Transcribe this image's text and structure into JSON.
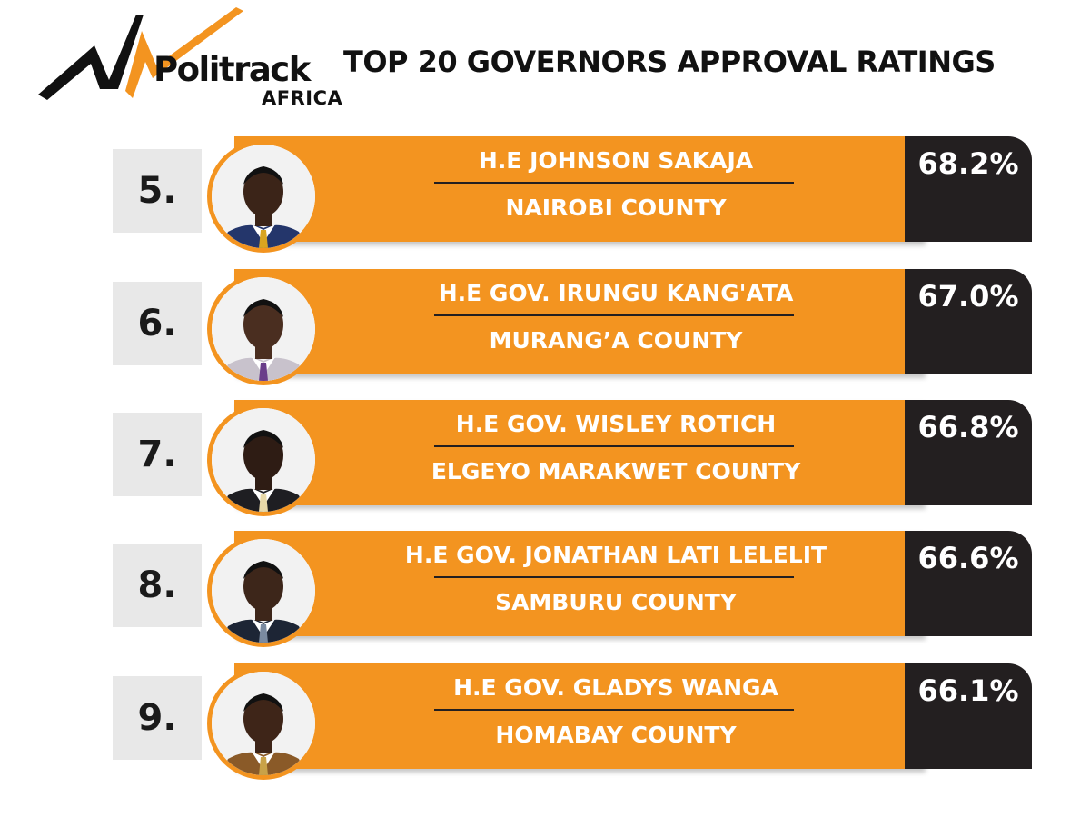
{
  "brand": {
    "name": "Politrack",
    "sub": "AFRICA",
    "colors": {
      "accent": "#f39420",
      "dark": "#231f20",
      "rank_bg": "#e8e8e8"
    }
  },
  "title": "TOP 20 GOVERNORS APPROVAL  RATINGS",
  "rows": [
    {
      "rank": "5.",
      "name": "H.E JOHNSON SAKAJA",
      "county": "NAIROBI COUNTY",
      "rating": "68.2%",
      "photo": "governor-photo",
      "suit": "#24366b",
      "tie": "#d9a520",
      "skin": "#3b2418"
    },
    {
      "rank": "6.",
      "name": "H.E GOV.  IRUNGU KANG'ATA",
      "county": "MURANG’A COUNTY",
      "rating": "67.0%",
      "photo": "governor-photo",
      "suit": "#c8c2cc",
      "tie": "#6a3d8a",
      "skin": "#4a2e20"
    },
    {
      "rank": "7.",
      "name": "H.E GOV. WISLEY ROTICH",
      "county": "ELGEYO MARAKWET COUNTY",
      "rating": "66.8%",
      "photo": "governor-photo",
      "suit": "#1e1e22",
      "tie": "#e8d9a8",
      "skin": "#2e1c14"
    },
    {
      "rank": "8.",
      "name": "H.E GOV.  JONATHAN LATI LELELIT",
      "county": "SAMBURU COUNTY",
      "rating": "66.6%",
      "photo": "governor-photo",
      "suit": "#1d2535",
      "tie": "#7a8aa0",
      "skin": "#3d261a"
    },
    {
      "rank": "9.",
      "name": "H.E GOV. GLADYS WANGA",
      "county": "HOMABAY COUNTY",
      "rating": "66.1%",
      "photo": "governor-photo",
      "suit": "#8a5a28",
      "tie": "#c9a248",
      "skin": "#3e2518"
    }
  ]
}
